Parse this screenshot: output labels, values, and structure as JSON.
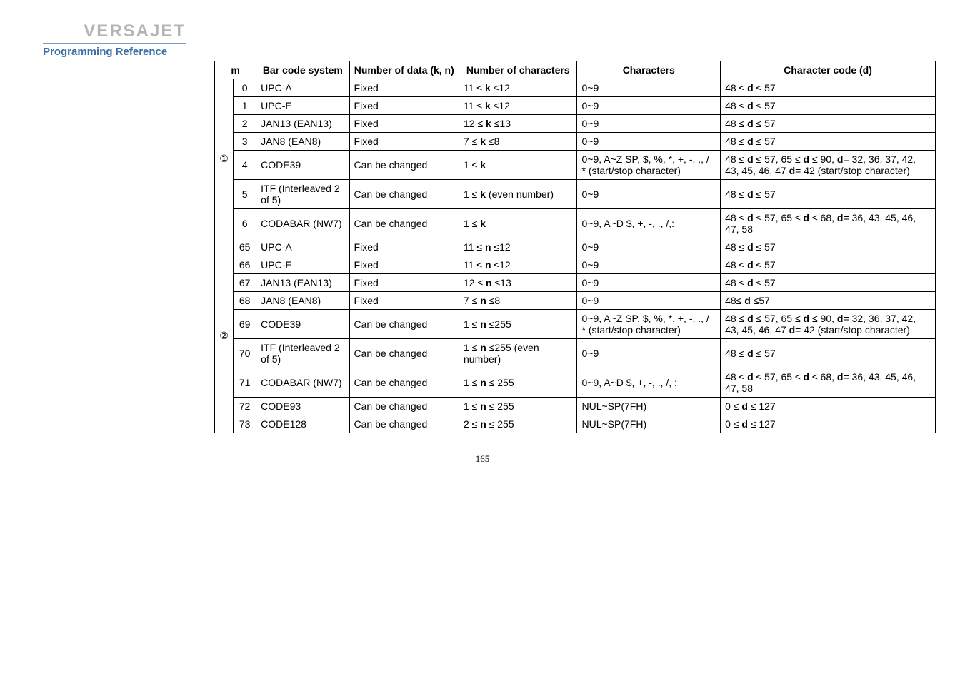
{
  "header": {
    "brand": "VERSAJET",
    "subtitle": "Programming Reference"
  },
  "table": {
    "columns": [
      "m",
      "Bar code system",
      "Number of data (k, n)",
      "Number of characters",
      "Characters",
      "Character code (d)"
    ],
    "groups": [
      {
        "group_label": "①",
        "rows": [
          {
            "m2": "0",
            "system": "UPC-A",
            "data": "Fixed",
            "numchar": "11 ≤ k ≤12",
            "chars": "0~9",
            "code": "48 ≤ d ≤ 57"
          },
          {
            "m2": "1",
            "system": "UPC-E",
            "data": "Fixed",
            "numchar": "11 ≤ k ≤12",
            "chars": "0~9",
            "code": "48 ≤ d ≤ 57"
          },
          {
            "m2": "2",
            "system": "JAN13 (EAN13)",
            "data": "Fixed",
            "numchar": "12 ≤ k ≤13",
            "chars": "0~9",
            "code": "48 ≤ d ≤ 57"
          },
          {
            "m2": "3",
            "system": "JAN8 (EAN8)",
            "data": "Fixed",
            "numchar": "7 ≤ k ≤8",
            "chars": "0~9",
            "code": "48 ≤ d ≤ 57"
          },
          {
            "m2": "4",
            "system": "CODE39",
            "data": "Can be changed",
            "numchar": "1 ≤ k",
            "chars": "0~9, A~Z SP, $, %, *, +, -, ., / * (start/stop character)",
            "code": "48 ≤ d ≤ 57, 65 ≤ d ≤ 90, d= 32, 36, 37, 42, 43, 45, 46, 47 d= 42 (start/stop character)"
          },
          {
            "m2": "5",
            "system": "ITF (Interleaved 2 of 5)",
            "data": "Can be changed",
            "numchar": "1 ≤ k (even number)",
            "chars": "0~9",
            "code": "48 ≤ d ≤ 57"
          },
          {
            "m2": "6",
            "system": "CODABAR (NW7)",
            "data": "Can be changed",
            "numchar": "1 ≤ k",
            "chars": "0~9, A~D $, +, -, ., /,:",
            "code": "48 ≤ d ≤ 57, 65 ≤ d ≤ 68, d= 36, 43, 45, 46, 47, 58"
          }
        ]
      },
      {
        "group_label": "②",
        "rows": [
          {
            "m2": "65",
            "system": "UPC-A",
            "data": "Fixed",
            "numchar": "11 ≤ n ≤12",
            "chars": "0~9",
            "code": "48 ≤ d ≤ 57"
          },
          {
            "m2": "66",
            "system": "UPC-E",
            "data": "Fixed",
            "numchar": "11 ≤ n ≤12",
            "chars": "0~9",
            "code": "48 ≤ d ≤ 57"
          },
          {
            "m2": "67",
            "system": "JAN13 (EAN13)",
            "data": "Fixed",
            "numchar": "12 ≤ n ≤13",
            "chars": "0~9",
            "code": "48 ≤ d ≤ 57"
          },
          {
            "m2": "68",
            "system": "JAN8 (EAN8)",
            "data": "Fixed",
            "numchar": "7 ≤ n ≤8",
            "chars": "0~9",
            "code": "48≤ d ≤57"
          },
          {
            "m2": "69",
            "system": "CODE39",
            "data": "Can be changed",
            "numchar": "1 ≤ n ≤255",
            "chars": "0~9, A~Z SP, $, %, *, +, -, ., / * (start/stop character)",
            "code": "48 ≤ d ≤ 57, 65 ≤ d ≤ 90, d= 32, 36, 37, 42, 43, 45, 46, 47 d= 42 (start/stop character)"
          },
          {
            "m2": "70",
            "system": "ITF (Interleaved 2 of 5)",
            "data": "Can be changed",
            "numchar": "1 ≤ n ≤255 (even number)",
            "chars": "0~9",
            "code": "48 ≤ d ≤ 57"
          },
          {
            "m2": "71",
            "system": "CODABAR (NW7)",
            "data": "Can be changed",
            "numchar": "1 ≤ n ≤ 255",
            "chars": "0~9, A~D $, +, -, ., /, :",
            "code": "48 ≤ d ≤ 57, 65 ≤ d ≤ 68, d= 36, 43, 45, 46, 47, 58"
          },
          {
            "m2": "72",
            "system": "CODE93",
            "data": "Can be changed",
            "numchar": "1 ≤ n ≤ 255",
            "chars": "NUL~SP(7FH)",
            "code": "0 ≤ d ≤ 127"
          },
          {
            "m2": "73",
            "system": "CODE128",
            "data": "Can be changed",
            "numchar": "2 ≤ n ≤ 255",
            "chars": "NUL~SP(7FH)",
            "code": "0 ≤ d ≤ 127"
          }
        ]
      }
    ]
  },
  "page_number": "165",
  "style": {
    "brand_color": "#b4b4b4",
    "underline_color": "#7a9bc4",
    "subtitle_color": "#3a6ea5",
    "border_color": "#000000",
    "background": "#ffffff",
    "font_body": "Arial",
    "font_header_size_pt": 18,
    "font_cell_size_pt": 11
  }
}
